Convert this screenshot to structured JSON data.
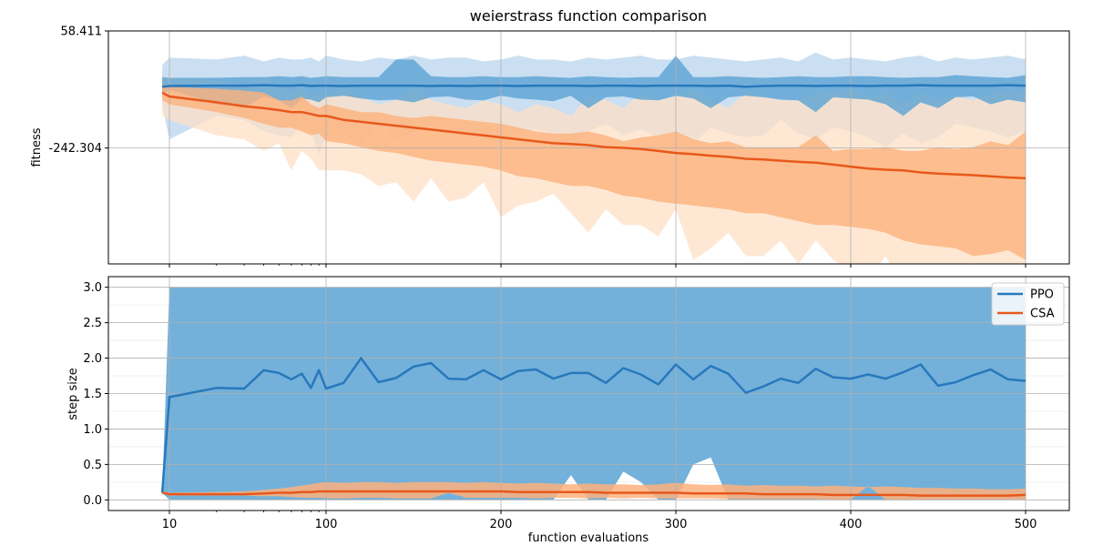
{
  "chart_data": [
    {
      "type": "line",
      "title": "weierstrass function comparison",
      "xlabel": "",
      "ylabel": "fitness",
      "xlim": [
        0,
        525
      ],
      "ylim": [
        -540,
        58.411
      ],
      "x_scale": "log",
      "x_ticks": [
        10,
        100,
        200,
        300,
        400,
        500
      ],
      "x_tick_labels": [
        "10",
        "100",
        "200",
        "300",
        "400",
        "500"
      ],
      "y_ticks": [
        58.411,
        -242.304
      ],
      "y_tick_labels": [
        "58.411",
        "-242.304"
      ],
      "grid": true,
      "x": [
        9,
        10,
        20,
        30,
        40,
        50,
        60,
        70,
        80,
        90,
        100,
        110,
        120,
        130,
        140,
        150,
        160,
        170,
        180,
        190,
        200,
        210,
        220,
        230,
        240,
        250,
        260,
        270,
        280,
        290,
        300,
        310,
        320,
        330,
        340,
        350,
        360,
        370,
        380,
        390,
        400,
        410,
        420,
        430,
        440,
        450,
        460,
        470,
        480,
        490,
        500
      ],
      "series": [
        {
          "name": "PPO",
          "color": "#2878bd",
          "band_inner_color": "#5aa3d3",
          "band_outer_color": "#b9d4ee",
          "mean": [
            -85,
            -83,
            -82,
            -82,
            -81,
            -82,
            -82,
            -81,
            -83,
            -82,
            -82,
            -83,
            -82,
            -82,
            -82,
            -82,
            -83,
            -82,
            -83,
            -82,
            -82,
            -83,
            -82,
            -82,
            -82,
            -83,
            -82,
            -82,
            -83,
            -82,
            -82,
            -82,
            -83,
            -82,
            -85,
            -83,
            -82,
            -82,
            -83,
            -82,
            -82,
            -83,
            -82,
            -82,
            -81,
            -82,
            -82,
            -82,
            -82,
            -81,
            -82
          ],
          "inner_low": [
            -105,
            -92,
            -130,
            -138,
            -110,
            -120,
            -140,
            -115,
            -118,
            -125,
            -112,
            -108,
            -115,
            -120,
            -118,
            -125,
            -112,
            -110,
            -118,
            -120,
            -108,
            -115,
            -118,
            -122,
            -108,
            -140,
            -112,
            -110,
            -118,
            -120,
            -108,
            -115,
            -140,
            -112,
            -108,
            -112,
            -118,
            -120,
            -150,
            -112,
            -115,
            -118,
            -130,
            -160,
            -125,
            -140,
            -112,
            -110,
            -130,
            -118,
            -125
          ],
          "inner_high": [
            -60,
            -62,
            -62,
            -60,
            -60,
            -58,
            -60,
            -58,
            -62,
            -60,
            -58,
            -60,
            -60,
            -60,
            -15,
            -15,
            -58,
            -60,
            -60,
            -58,
            -60,
            -60,
            -58,
            -60,
            -62,
            -58,
            -60,
            -62,
            -60,
            -60,
            -5,
            -60,
            -60,
            -58,
            -60,
            -62,
            -60,
            -58,
            -60,
            -60,
            -58,
            -58,
            -60,
            -62,
            -60,
            -60,
            -55,
            -58,
            -60,
            -62,
            -55
          ],
          "outer_low": [
            -130,
            -220,
            -160,
            -170,
            -200,
            -210,
            -215,
            -180,
            -200,
            -260,
            -215,
            -205,
            -240,
            -170,
            -220,
            -200,
            -185,
            -210,
            -200,
            -215,
            -230,
            -200,
            -195,
            -205,
            -240,
            -200,
            -180,
            -210,
            -195,
            -215,
            -200,
            -230,
            -190,
            -205,
            -215,
            -210,
            -170,
            -205,
            -220,
            -190,
            -200,
            -215,
            -240,
            -205,
            -230,
            -215,
            -180,
            -190,
            -200,
            -215,
            -200
          ],
          "outer_high": [
            -30,
            -10,
            -15,
            -5,
            -20,
            -10,
            -15,
            -15,
            -10,
            -20,
            -5,
            -15,
            -20,
            -10,
            -15,
            -5,
            -15,
            -10,
            -10,
            -20,
            -15,
            -5,
            -15,
            -15,
            -20,
            -10,
            -15,
            -10,
            -5,
            -15,
            -15,
            -5,
            -10,
            -15,
            -20,
            -15,
            -10,
            -20,
            3,
            -15,
            -10,
            -15,
            -20,
            -10,
            -5,
            -20,
            -10,
            -15,
            -10,
            -5,
            -15
          ]
        },
        {
          "name": "CSA",
          "color": "#e8581c",
          "band_inner_color": "#fdb17c",
          "band_outer_color": "#fde0c6",
          "mean": [
            -100,
            -110,
            -125,
            -135,
            -140,
            -145,
            -150,
            -150,
            -155,
            -160,
            -160,
            -170,
            -175,
            -180,
            -185,
            -190,
            -195,
            -200,
            -205,
            -210,
            -215,
            -220,
            -225,
            -230,
            -232,
            -235,
            -240,
            -242,
            -245,
            -250,
            -255,
            -258,
            -262,
            -265,
            -270,
            -272,
            -275,
            -278,
            -280,
            -285,
            -290,
            -295,
            -298,
            -300,
            -305,
            -308,
            -310,
            -312,
            -315,
            -318,
            -320
          ],
          "inner_low": [
            -120,
            -130,
            -150,
            -165,
            -180,
            -190,
            -190,
            -200,
            -210,
            -205,
            -225,
            -230,
            -240,
            -250,
            -255,
            -265,
            -275,
            -280,
            -285,
            -290,
            -300,
            -315,
            -320,
            -330,
            -340,
            -340,
            -350,
            -365,
            -370,
            -380,
            -385,
            -390,
            -395,
            -400,
            -410,
            -410,
            -420,
            -430,
            -440,
            -440,
            -445,
            -450,
            -460,
            -480,
            -490,
            -495,
            -500,
            -520,
            -515,
            -505,
            -530
          ],
          "inner_high": [
            -80,
            -85,
            -90,
            -95,
            -100,
            -120,
            -120,
            -110,
            -130,
            -140,
            -130,
            -140,
            -150,
            -150,
            -160,
            -165,
            -160,
            -165,
            -170,
            -175,
            -180,
            -190,
            -200,
            -205,
            -205,
            -200,
            -210,
            -225,
            -215,
            -210,
            -200,
            -220,
            -230,
            -225,
            -240,
            -240,
            -240,
            -240,
            -210,
            -250,
            -245,
            -245,
            -240,
            -250,
            -250,
            -240,
            -245,
            -240,
            -225,
            -235,
            -200
          ],
          "outer_low": [
            -160,
            -170,
            -210,
            -220,
            -250,
            -230,
            -300,
            -250,
            -270,
            -300,
            -300,
            -300,
            -310,
            -340,
            -330,
            -380,
            -320,
            -380,
            -370,
            -330,
            -420,
            -390,
            -380,
            -360,
            -410,
            -460,
            -400,
            -440,
            -440,
            -470,
            -400,
            -530,
            -500,
            -460,
            -520,
            -520,
            -480,
            -540,
            -480,
            -530,
            -560,
            -580,
            -520,
            -600,
            -580,
            -560,
            -560,
            -550,
            -560,
            -580,
            -620
          ],
          "outer_high": [
            -60,
            -60,
            -70,
            -80,
            -60,
            -90,
            -100,
            -80,
            -110,
            -100,
            -110,
            -90,
            -110,
            -130,
            -120,
            -90,
            -120,
            -130,
            -140,
            -120,
            -130,
            -150,
            -130,
            -140,
            -160,
            -110,
            -120,
            -140,
            -100,
            -120,
            -110,
            -90,
            -120,
            -140,
            -100,
            -110,
            -120,
            -120,
            -100,
            -100,
            -90,
            -110,
            -100,
            -130,
            -100,
            -120,
            -110,
            -120,
            -100,
            -90,
            -100
          ]
        }
      ]
    },
    {
      "type": "line",
      "title": "",
      "xlabel": "function evaluations",
      "ylabel": "step size",
      "xlim": [
        0,
        525
      ],
      "ylim": [
        -0.15,
        3.15
      ],
      "x_scale": "log",
      "x_ticks": [
        10,
        100,
        200,
        300,
        400,
        500
      ],
      "x_tick_labels": [
        "10",
        "100",
        "200",
        "300",
        "400",
        "500"
      ],
      "y_ticks": [
        0.0,
        0.5,
        1.0,
        1.5,
        2.0,
        2.5,
        3.0
      ],
      "y_tick_labels": [
        "0.0",
        "0.5",
        "1.0",
        "1.5",
        "2.0",
        "2.5",
        "3.0"
      ],
      "grid": true,
      "legend": {
        "location": "top-right",
        "entries": [
          "PPO",
          "CSA"
        ]
      },
      "x": [
        9,
        10,
        20,
        30,
        40,
        50,
        60,
        70,
        80,
        90,
        100,
        110,
        120,
        130,
        140,
        150,
        160,
        170,
        180,
        190,
        200,
        210,
        220,
        230,
        240,
        250,
        260,
        270,
        280,
        290,
        300,
        310,
        320,
        330,
        340,
        350,
        360,
        370,
        380,
        390,
        400,
        410,
        420,
        430,
        440,
        450,
        460,
        470,
        480,
        490,
        500
      ],
      "series": [
        {
          "name": "PPO",
          "color": "#2878bd",
          "band_color": "#5aa3d3",
          "mean": [
            0.1,
            1.45,
            1.58,
            1.57,
            1.83,
            1.79,
            1.7,
            1.78,
            1.58,
            1.83,
            1.57,
            1.65,
            2.0,
            1.66,
            1.72,
            1.88,
            1.93,
            1.71,
            1.7,
            1.83,
            1.7,
            1.82,
            1.84,
            1.71,
            1.79,
            1.79,
            1.65,
            1.86,
            1.77,
            1.63,
            1.91,
            1.7,
            1.89,
            1.78,
            1.51,
            1.6,
            1.71,
            1.65,
            1.85,
            1.73,
            1.71,
            1.77,
            1.71,
            1.8,
            1.91,
            1.61,
            1.66,
            1.76,
            1.84,
            1.7,
            1.68
          ],
          "band_low": [
            0.1,
            0.0,
            0.0,
            0.0,
            0.0,
            0.0,
            0.0,
            0.0,
            0.0,
            0.0,
            0.0,
            0.0,
            0.0,
            0.0,
            0.0,
            0.0,
            0.0,
            0.0,
            0.0,
            0.0,
            0.0,
            0.0,
            0.0,
            0.0,
            0.35,
            0.0,
            0.0,
            0.4,
            0.25,
            0.0,
            0.0,
            0.5,
            0.6,
            0.0,
            0.0,
            0.0,
            0.0,
            0.0,
            0.0,
            0.0,
            0.0,
            0.0,
            0.0,
            0.0,
            0.0,
            0.0,
            0.0,
            0.0,
            0.0,
            0.0,
            0.0
          ],
          "band_high": [
            0.1,
            3.0,
            3.0,
            3.0,
            3.0,
            3.0,
            3.0,
            3.0,
            3.0,
            3.0,
            3.0,
            3.0,
            3.0,
            3.0,
            3.0,
            3.0,
            3.0,
            3.0,
            3.0,
            3.0,
            3.0,
            3.0,
            3.0,
            3.0,
            3.0,
            3.0,
            3.0,
            3.0,
            3.0,
            3.0,
            3.0,
            3.0,
            3.0,
            3.0,
            3.0,
            3.0,
            3.0,
            3.0,
            3.0,
            3.0,
            3.0,
            3.0,
            3.0,
            3.0,
            3.0,
            3.0,
            3.0,
            3.0,
            3.0,
            3.0,
            3.0
          ]
        },
        {
          "name": "CSA",
          "color": "#e8581c",
          "band_color": "#fdb17c",
          "mean": [
            0.1,
            0.08,
            0.08,
            0.08,
            0.09,
            0.1,
            0.1,
            0.11,
            0.11,
            0.12,
            0.12,
            0.12,
            0.12,
            0.12,
            0.12,
            0.12,
            0.12,
            0.12,
            0.12,
            0.12,
            0.12,
            0.11,
            0.11,
            0.11,
            0.11,
            0.11,
            0.1,
            0.1,
            0.1,
            0.1,
            0.1,
            0.09,
            0.09,
            0.09,
            0.09,
            0.08,
            0.08,
            0.08,
            0.08,
            0.07,
            0.07,
            0.07,
            0.07,
            0.07,
            0.06,
            0.06,
            0.06,
            0.06,
            0.06,
            0.06,
            0.07
          ],
          "band_low": [
            0.1,
            0.06,
            0.06,
            0.06,
            0.05,
            0.05,
            0.04,
            0.03,
            0.03,
            0.03,
            0.02,
            0.02,
            0.03,
            0.03,
            0.02,
            0.02,
            0.02,
            0.1,
            0.03,
            0.03,
            0.03,
            0.03,
            0.02,
            0.03,
            0.03,
            0.02,
            0.03,
            0.02,
            0.03,
            0.02,
            0.02,
            0.02,
            0.02,
            0.01,
            0.01,
            0.01,
            0.01,
            0.01,
            0.01,
            0.0,
            0.0,
            0.2,
            0.0,
            0.0,
            0.0,
            0.0,
            0.0,
            0.0,
            0.0,
            0.0,
            0.0
          ],
          "band_high": [
            0.12,
            0.1,
            0.11,
            0.12,
            0.14,
            0.16,
            0.18,
            0.2,
            0.22,
            0.24,
            0.25,
            0.24,
            0.25,
            0.25,
            0.24,
            0.25,
            0.25,
            0.25,
            0.24,
            0.25,
            0.24,
            0.23,
            0.24,
            0.23,
            0.22,
            0.23,
            0.22,
            0.22,
            0.21,
            0.22,
            0.24,
            0.22,
            0.21,
            0.22,
            0.2,
            0.21,
            0.2,
            0.2,
            0.19,
            0.2,
            0.19,
            0.18,
            0.19,
            0.18,
            0.17,
            0.17,
            0.16,
            0.16,
            0.15,
            0.15,
            0.16
          ]
        }
      ]
    }
  ]
}
